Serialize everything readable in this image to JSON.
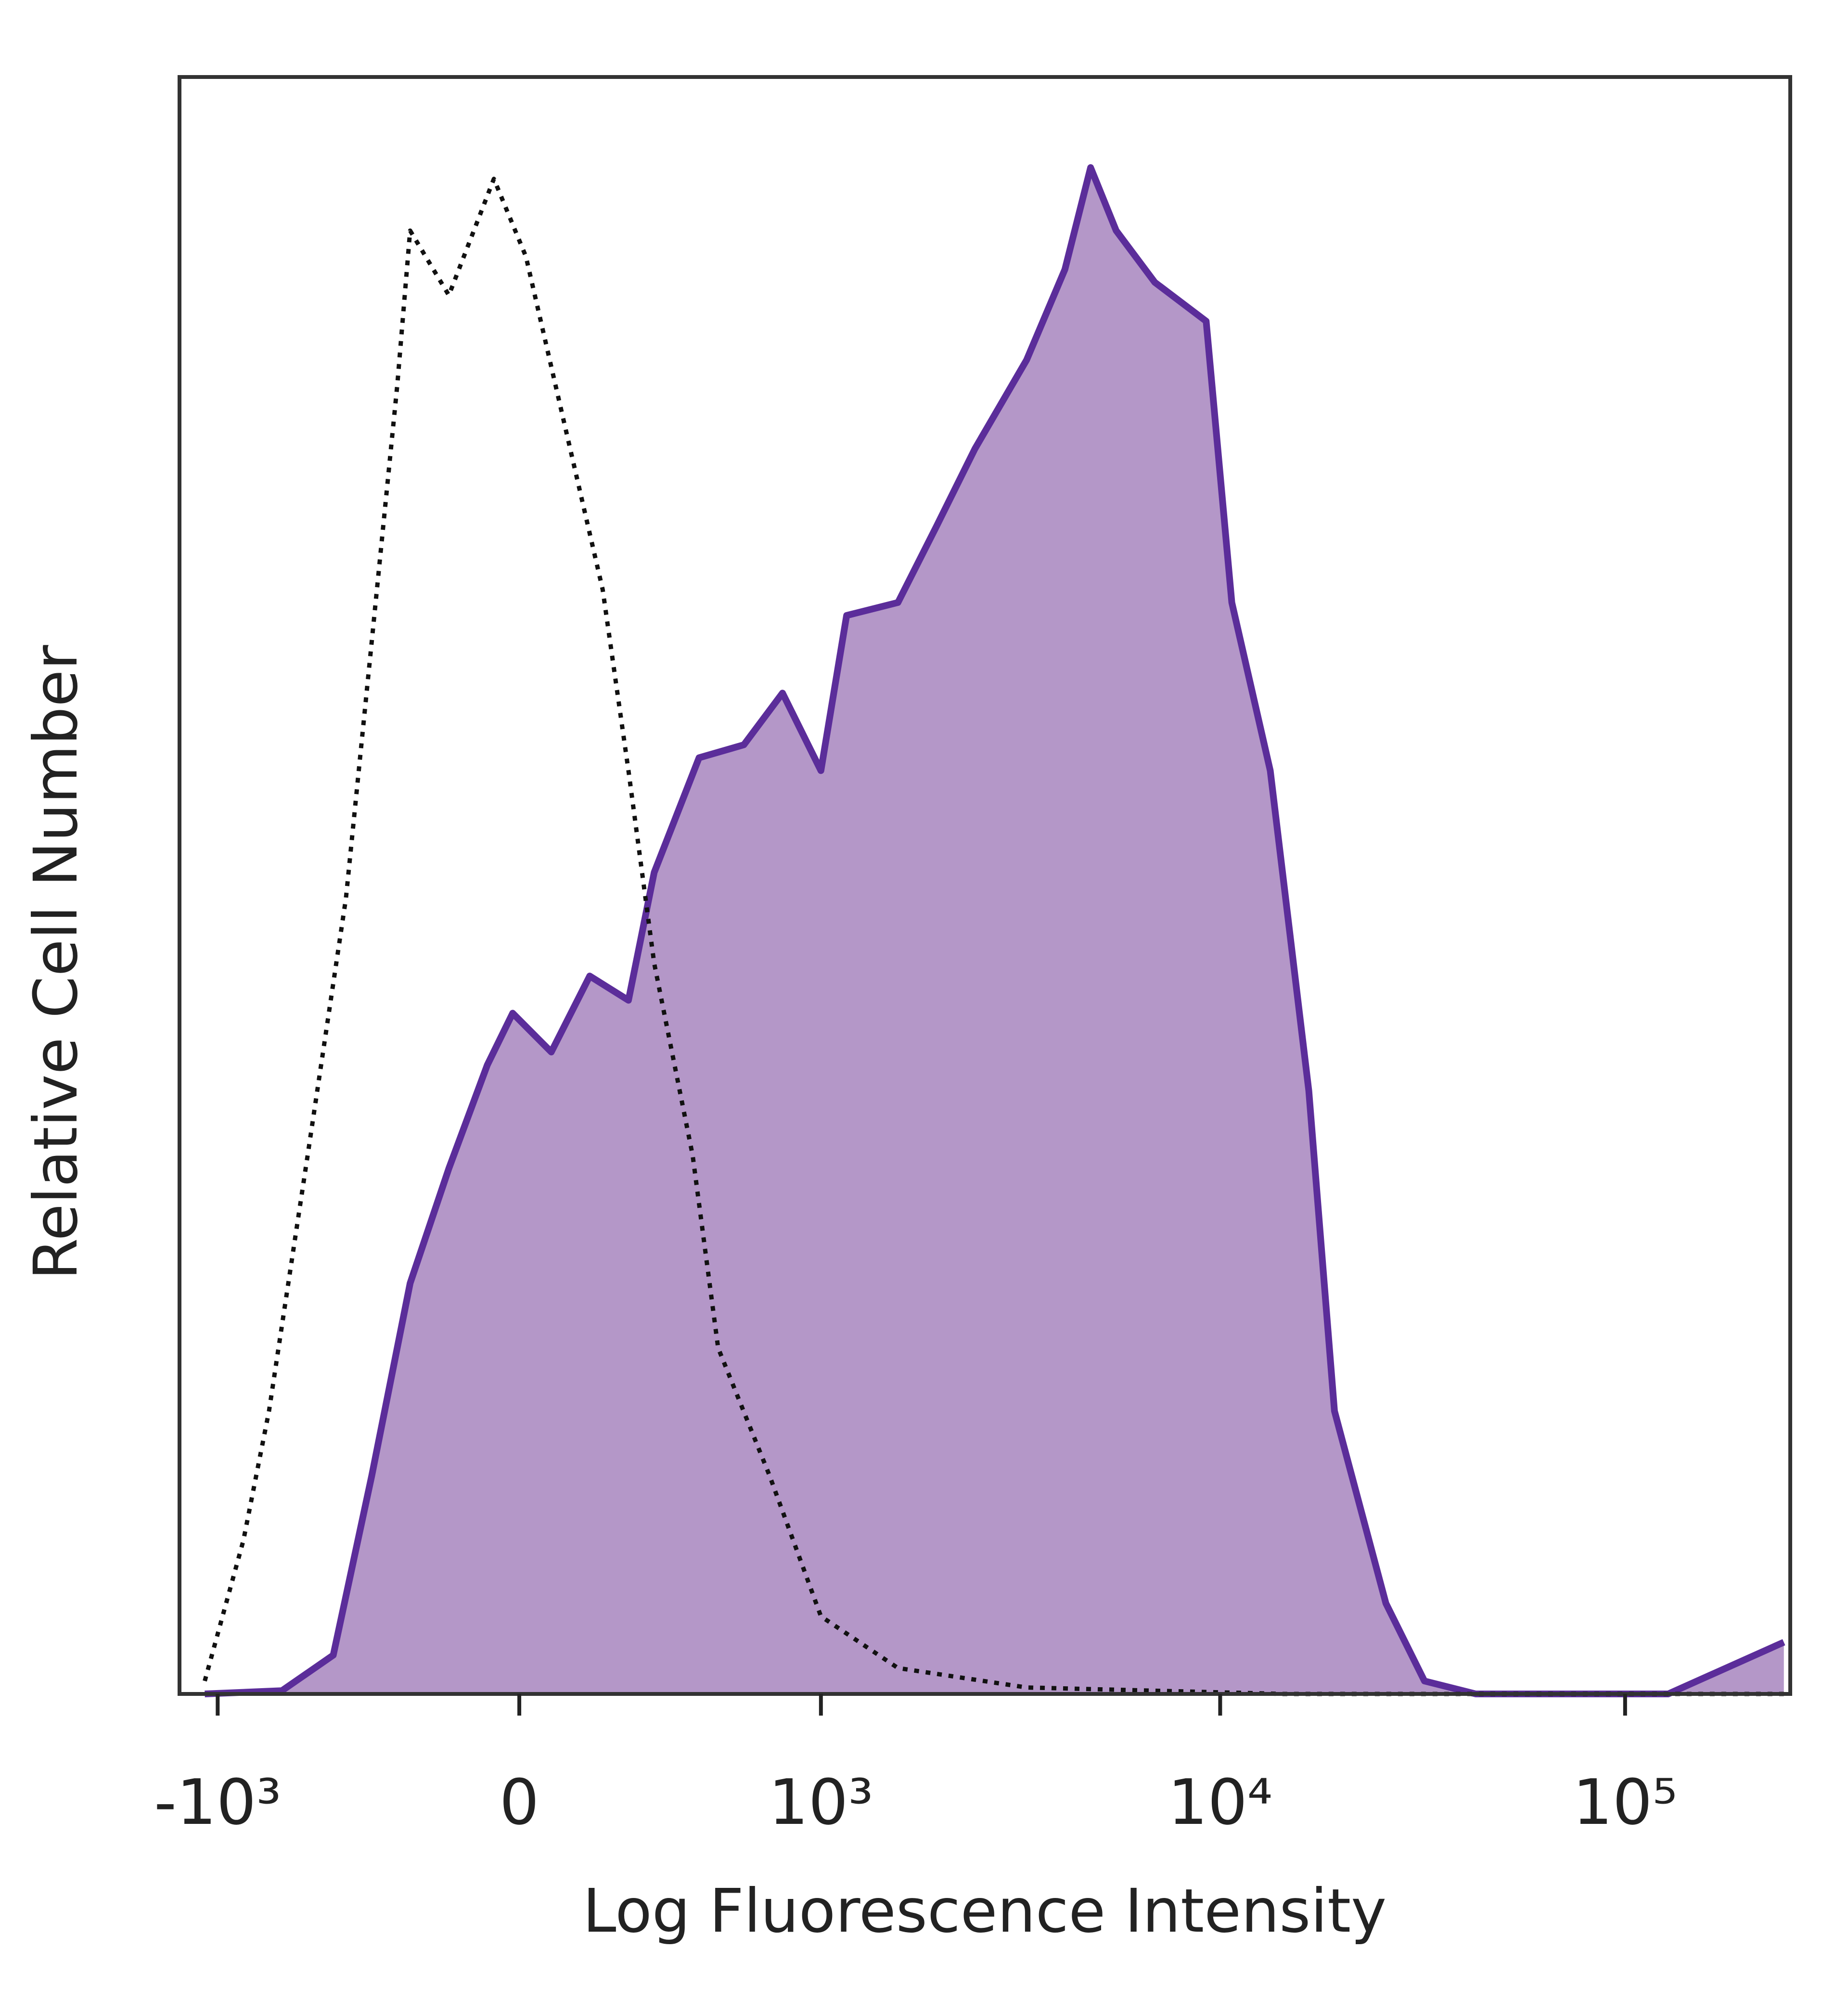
{
  "chart_data": {
    "type": "histogram-overlay",
    "xlabel": "Log Fluorescence Intensity",
    "ylabel": "Relative Cell Number",
    "xscale": "biexponential",
    "xlim": [
      -1257,
      255750
    ],
    "xticks": [
      {
        "value": -1000,
        "label": "-10³"
      },
      0,
      {
        "value": 1000,
        "label": "10³"
      },
      {
        "value": 10000,
        "label": "10⁴"
      },
      {
        "value": 100000,
        "label": "10⁵"
      }
    ],
    "ylim": [
      0,
      100
    ],
    "series": [
      {
        "color": "#5b2d9a",
        "fill": "#b497c8",
        "line_style": "solid",
        "x": [
          -1081,
          -669,
          -471,
          -350,
          -246,
          -153,
          -68,
          -14,
          68,
          153,
          246,
          314,
          450,
          615,
          789,
          1000,
          1167,
          1580,
          1975,
          2466,
          3318,
          4129,
          4781,
          5531,
          6893,
          9233,
          10684,
          13295,
          16554,
          19158,
          25668,
          31955,
          42780,
          127782,
          246636
        ],
        "values": [
          0,
          0.2,
          2.4,
          13.5,
          25.4,
          32.5,
          38.9,
          42.1,
          39.7,
          44.4,
          42.9,
          50.8,
          57.9,
          58.7,
          61.9,
          57.1,
          66.7,
          67.5,
          72.2,
          77.0,
          82.5,
          88.1,
          94.4,
          90.5,
          87.3,
          84.9,
          67.5,
          57.1,
          37.3,
          17.5,
          5.6,
          0.8,
          0,
          0,
          3.2
        ]
      },
      {
        "color": "#111111",
        "line_style": "dotted",
        "x": [
          -1081,
          -854,
          -727,
          -564,
          -429,
          -350,
          -279,
          -246,
          -153,
          -54,
          14,
          96,
          183,
          246,
          314,
          429,
          516,
          727,
          1000,
          1580,
          3318,
          14300,
          246636
        ],
        "values": [
          0.8,
          9.5,
          17.5,
          33.3,
          49.2,
          65.1,
          81.0,
          90.5,
          86.5,
          93.7,
          88.9,
          78.6,
          68.3,
          57.1,
          45.2,
          33.3,
          21.4,
          13.5,
          4.8,
          1.6,
          0.4,
          0,
          0
        ]
      }
    ]
  }
}
